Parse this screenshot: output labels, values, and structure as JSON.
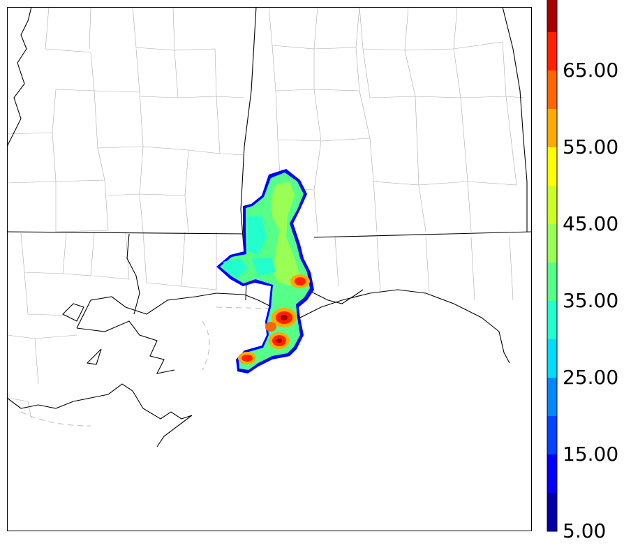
{
  "colorbar": {
    "tick_labels": [
      "5.00",
      "15.00",
      "25.00",
      "35.00",
      "45.00",
      "55.00",
      "65.00"
    ],
    "levels": [
      5,
      10,
      15,
      20,
      25,
      30,
      35,
      40,
      45,
      50,
      55,
      60,
      65,
      70
    ],
    "colors": [
      "#0000aa",
      "#0000ff",
      "#0044ff",
      "#0088ff",
      "#00ddff",
      "#22ffcc",
      "#55ff88",
      "#99ff55",
      "#ccff22",
      "#ffff00",
      "#ffaa00",
      "#ff6600",
      "#ff2200",
      "#aa0000",
      "#800000"
    ],
    "extend": "max"
  }
}
